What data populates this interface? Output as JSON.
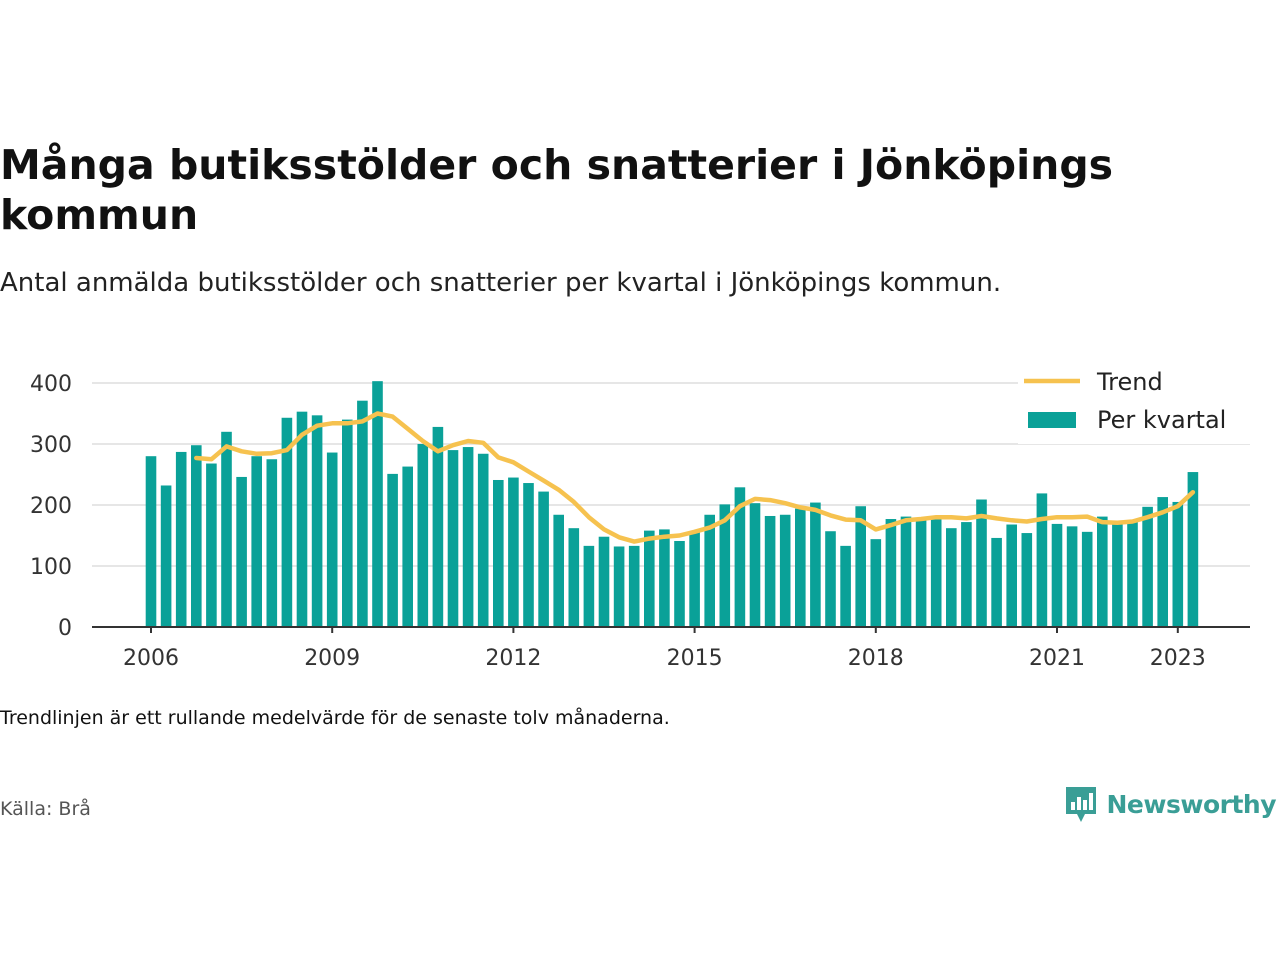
{
  "header": {
    "title": "Många butiksstölder och snatterier i Jönköpings kommun",
    "subtitle": "Antal anmälda butiksstölder och snatterier per kvartal i Jönköpings kommun."
  },
  "footer": {
    "note": "Trendlinjen är ett rullande medelvärde för de senaste tolv månaderna.",
    "source": "Källa: Brå",
    "brand": "Newsworthy"
  },
  "colors": {
    "bar": "#0aa198",
    "trend": "#f6c24f",
    "grid": "#dddddd",
    "axis": "#333333",
    "brand": "#3a9e96"
  },
  "icons": {
    "brand_logo": "newsworthy-logo-icon"
  },
  "chart_data": {
    "type": "bar",
    "x_start": "2006-Q1",
    "ylim": [
      0,
      400
    ],
    "yticks": [
      0,
      100,
      200,
      300,
      400
    ],
    "xticks": [
      "2006",
      "2009",
      "2012",
      "2015",
      "2018",
      "2021",
      "2023"
    ],
    "grid": true,
    "legend_position": "top-right",
    "series": [
      {
        "name": "Per kvartal",
        "type": "bar",
        "values": [
          280,
          232,
          287,
          298,
          268,
          320,
          246,
          280,
          275,
          343,
          353,
          347,
          286,
          340,
          371,
          403,
          251,
          263,
          300,
          328,
          290,
          295,
          284,
          241,
          245,
          236,
          222,
          184,
          162,
          133,
          148,
          132,
          133,
          158,
          160,
          141,
          155,
          184,
          201,
          229,
          203,
          182,
          184,
          194,
          204,
          157,
          133,
          198,
          144,
          177,
          181,
          176,
          180,
          162,
          172,
          209,
          146,
          168,
          154,
          219,
          169,
          165,
          156,
          181,
          170,
          172,
          197,
          213,
          205,
          254
        ]
      },
      {
        "name": "Trend",
        "type": "line",
        "values": [
          null,
          null,
          null,
          277,
          275,
          296,
          288,
          284,
          285,
          290,
          315,
          330,
          334,
          334,
          337,
          350,
          345,
          325,
          305,
          288,
          298,
          305,
          302,
          278,
          270,
          255,
          240,
          225,
          205,
          180,
          160,
          147,
          140,
          145,
          148,
          150,
          156,
          163,
          175,
          198,
          210,
          208,
          203,
          196,
          192,
          183,
          176,
          175,
          160,
          167,
          175,
          177,
          180,
          180,
          178,
          182,
          178,
          175,
          173,
          177,
          180,
          180,
          181,
          172,
          171,
          173,
          180,
          188,
          198,
          221
        ]
      }
    ]
  }
}
